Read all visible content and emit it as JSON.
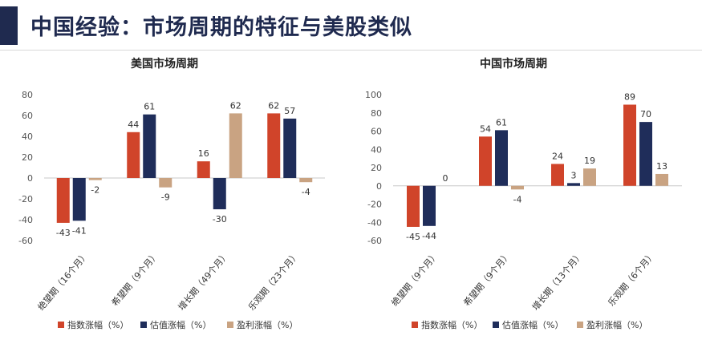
{
  "page_title": "中国经验：市场周期的特征与美股类似",
  "colors": {
    "title": "#1f2a4f",
    "accent_bar": "#1f2a4f"
  },
  "chart_data": [
    {
      "type": "bar",
      "title": "美国市场周期",
      "categories": [
        "绝望期（16个月）",
        "希望期（9个月）",
        "增长期（49个月）",
        "乐观期（23个月）"
      ],
      "series": [
        {
          "name": "指数涨幅（%）",
          "color": "#d0442a",
          "values": [
            -43,
            44,
            16,
            62
          ],
          "labels": [
            "-43",
            "44",
            "16",
            "62"
          ]
        },
        {
          "name": "估值涨幅（%）",
          "color": "#1f2d5a",
          "values": [
            -41,
            61,
            -30,
            57
          ],
          "labels": [
            "-41",
            "61",
            "-30",
            "57"
          ]
        },
        {
          "name": "盈利涨幅（%）",
          "color": "#c9a382",
          "values": [
            -2,
            -9,
            62,
            -4
          ],
          "labels": [
            "-2",
            "-9",
            "62",
            "-4"
          ]
        }
      ],
      "ylim": [
        -60,
        80
      ],
      "yticks": [
        80,
        60,
        40,
        20,
        0,
        -20,
        -40,
        -60
      ],
      "ytick_labels": [
        "80",
        "60",
        "40",
        "20",
        "0",
        "-20",
        "-40",
        "-60"
      ],
      "xlabel": "",
      "ylabel": "",
      "grid": false,
      "legend": "bottom"
    },
    {
      "type": "bar",
      "title": "中国市场周期",
      "categories": [
        "绝望期（9个月）",
        "希望期（9个月）",
        "增长期（13个月）",
        "乐观期（6个月）"
      ],
      "series": [
        {
          "name": "指数涨幅（%）",
          "color": "#d0442a",
          "values": [
            -45,
            54,
            24,
            89
          ],
          "labels": [
            "-45",
            "54",
            "24",
            "89"
          ]
        },
        {
          "name": "估值涨幅（%）",
          "color": "#1f2d5a",
          "values": [
            -44,
            61,
            3,
            70
          ],
          "labels": [
            "-44",
            "61",
            "3",
            "70"
          ]
        },
        {
          "name": "盈利涨幅（%）",
          "color": "#c9a382",
          "values": [
            0,
            -4,
            19,
            13
          ],
          "labels": [
            "0",
            "-4",
            "19",
            "13"
          ]
        }
      ],
      "ylim": [
        -60,
        100
      ],
      "yticks": [
        100,
        80,
        60,
        40,
        20,
        0,
        -20,
        -40,
        -60
      ],
      "ytick_labels": [
        "100",
        "80",
        "60",
        "40",
        "20",
        "0",
        "-20",
        "-40",
        "-60"
      ],
      "xlabel": "",
      "ylabel": "",
      "grid": false,
      "legend": "bottom"
    }
  ]
}
